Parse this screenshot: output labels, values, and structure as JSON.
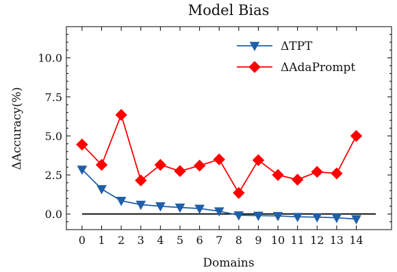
{
  "chart_data": {
    "type": "line",
    "title": "Model Bias",
    "xlabel": "Domains",
    "ylabel": "ΔAccuracy(%)",
    "x": [
      0,
      1,
      2,
      3,
      4,
      5,
      6,
      7,
      8,
      9,
      10,
      11,
      12,
      13,
      14
    ],
    "xlim": [
      -0.8,
      15.8
    ],
    "ylim": [
      -1.0,
      12.0
    ],
    "x_ticks": [
      "0",
      "1",
      "2",
      "3",
      "4",
      "5",
      "6",
      "7",
      "8",
      "9",
      "10",
      "11",
      "12",
      "13",
      "14"
    ],
    "y_ticks": [
      "0.0",
      "2.5",
      "5.0",
      "7.5",
      "10.0"
    ],
    "y_tick_values": [
      0.0,
      2.5,
      5.0,
      7.5,
      10.0
    ],
    "legend_position": "top-right",
    "grid": false,
    "reference_line": {
      "y": 0.0,
      "x_start": 0,
      "x_end": 15,
      "color": "#000000"
    },
    "series": [
      {
        "name": "ΔTPT",
        "color": "#1f5fa8",
        "marker": "triangle-down",
        "values": [
          2.85,
          1.6,
          0.85,
          0.6,
          0.5,
          0.42,
          0.35,
          0.18,
          -0.08,
          -0.1,
          -0.12,
          -0.18,
          -0.2,
          -0.24,
          -0.32
        ]
      },
      {
        "name": "ΔAdaPrompt",
        "color": "#ff0000",
        "marker": "diamond",
        "values": [
          4.45,
          3.15,
          6.35,
          2.15,
          3.15,
          2.75,
          3.1,
          3.5,
          1.35,
          3.45,
          2.5,
          2.2,
          2.7,
          2.6,
          5.0
        ]
      }
    ]
  }
}
